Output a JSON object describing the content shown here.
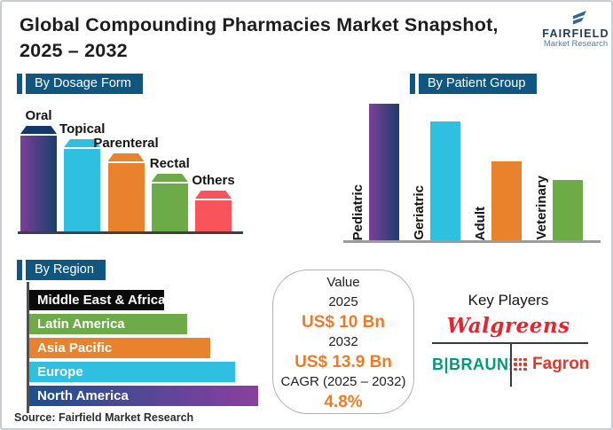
{
  "header": {
    "title": "Global Compounding Pharmacies Market Snapshot, 2025 – 2032"
  },
  "logo": {
    "brand": "FAIRFIELD",
    "tagline": "Market Research"
  },
  "sections": {
    "dosage_label": "By Dosage Form",
    "patient_label": "By Patient Group",
    "region_label": "By Region"
  },
  "chart_data": [
    {
      "type": "bar",
      "title": "By Dosage Form",
      "orientation": "vertical",
      "categories": [
        "Oral",
        "Topical",
        "Parenteral",
        "Rectal",
        "Others"
      ],
      "values": [
        100,
        87,
        74,
        55,
        39
      ],
      "values_note": "relative bar heights (max = 100); no numeric axis shown in figure",
      "bar_colors": [
        "linear-gradient(90deg,#7a3f97,#173f6d)",
        "#2fbfe1",
        "#e9822d",
        "#6cab47",
        "#f9545c"
      ],
      "cap_colors": [
        "#14386b",
        "#2fbfe1",
        "#e9822d",
        "#6cab47",
        "#f9545c"
      ],
      "grid": false,
      "legend": false
    },
    {
      "type": "bar",
      "title": "By Patient Group",
      "orientation": "vertical",
      "categories": [
        "Pediatric",
        "Geriatric",
        "Adult",
        "Veterinary"
      ],
      "values": [
        100,
        87,
        58,
        44
      ],
      "values_note": "relative bar heights (max = 100); no numeric axis shown in figure",
      "bar_colors": [
        "linear-gradient(90deg,#7d3f9b,#1c3e6d)",
        "#2fbfe1",
        "#e9822d",
        "#6cab47"
      ],
      "grid": false,
      "legend": false
    },
    {
      "type": "bar",
      "title": "By Region",
      "orientation": "horizontal",
      "categories": [
        "Middle East & Africa",
        "Latin America",
        "Asia Pacific",
        "Europe",
        "North America"
      ],
      "values": [
        59,
        69,
        79,
        90,
        100
      ],
      "values_note": "relative bar lengths (max = 100); no numeric axis shown in figure",
      "bar_colors": [
        "#0b0b0b",
        "#6cab47",
        "#e9822d",
        "#2fbfe1",
        "linear-gradient(90deg,#1d4f8e,#8a3f9e)"
      ],
      "grid": false,
      "legend": false
    }
  ],
  "value_card": {
    "value_label": "Value",
    "year_1": "2025",
    "value_1": "US$ 10 Bn",
    "year_2": "2032",
    "value_2": "US$ 13.9 Bn",
    "cagr_label": "CAGR (2025 – 2032)",
    "cagr_value": "4.8%"
  },
  "key_players": {
    "heading": "Key Players",
    "player_1": "Walgreens",
    "player_2": "B|BRAUN",
    "player_3": "Fagron"
  },
  "source": "Source: Fairfield Market Research",
  "colors": {
    "section_header_bg": "#11567e",
    "accent_orange": "#ee7b28",
    "walgreens_red": "#e8232e",
    "braun_green": "#009b77",
    "fagron_red": "#e2392e",
    "fagron_dot_gray": "#b9b9b9",
    "logo_navy": "#1d3c5f",
    "logo_steel_blue": "#4b7ea8"
  }
}
